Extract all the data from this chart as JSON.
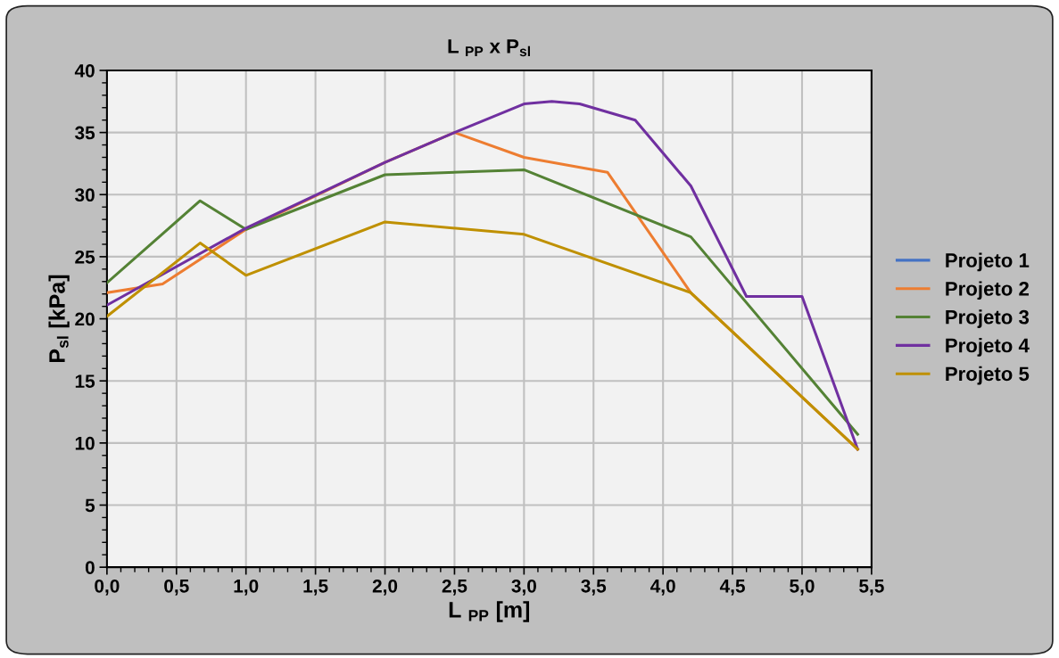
{
  "chart_data": {
    "type": "line",
    "title": "L $_{PP}$ x P$_{sl}$",
    "xlabel": "L $_{PP}$ [m]",
    "ylabel": "P$_{sl}$ [kPa]",
    "series": [
      {
        "name": "Projeto 1",
        "color": "#4472c4",
        "values": [
          null,
          null,
          null,
          null,
          null,
          null,
          null
        ]
      },
      {
        "name": "Projeto 2",
        "color": "#ed7d31",
        "x": [
          0,
          0.4,
          1.0,
          2.0,
          2.5,
          3.0,
          3.6,
          4.2,
          5.4
        ],
        "values": [
          22.1,
          22.8,
          27.2,
          32.6,
          35.0,
          33.0,
          31.8,
          22.1,
          9.5
        ]
      },
      {
        "name": "Projeto 3",
        "color": "#548235",
        "x": [
          0,
          0.67,
          1.0,
          2.0,
          3.0,
          4.2,
          5.4
        ],
        "values": [
          22.9,
          29.5,
          27.2,
          31.6,
          32.0,
          26.6,
          10.7
        ]
      },
      {
        "name": "Projeto 4",
        "color": "#7030a0",
        "x": [
          0,
          1.0,
          2.0,
          2.5,
          3.0,
          3.2,
          3.4,
          3.8,
          4.2,
          4.6,
          5.0,
          5.4
        ],
        "values": [
          21.1,
          27.3,
          32.6,
          35.0,
          37.3,
          37.5,
          37.3,
          36.0,
          30.7,
          21.8,
          21.8,
          9.5
        ]
      },
      {
        "name": "Projeto 5",
        "color": "#bf9000",
        "x": [
          0,
          0.67,
          1.0,
          2.0,
          3.0,
          4.2,
          5.4
        ],
        "values": [
          20.2,
          26.1,
          23.5,
          27.8,
          26.8,
          22.1,
          9.5
        ]
      }
    ],
    "xlim": [
      0,
      5.5
    ],
    "xticks": [
      {
        "value": 0,
        "label": "0,0"
      },
      {
        "value": 0.5,
        "label": "0,5"
      },
      {
        "value": 1.0,
        "label": "1,0"
      },
      {
        "value": 1.5,
        "label": "1,5"
      },
      {
        "value": 2.0,
        "label": "2,0"
      },
      {
        "value": 2.5,
        "label": "2,5"
      },
      {
        "value": 3.0,
        "label": "3,0"
      },
      {
        "value": 3.5,
        "label": "3,5"
      },
      {
        "value": 4.0,
        "label": "4,0"
      },
      {
        "value": 4.5,
        "label": "4,5"
      },
      {
        "value": 5.0,
        "label": "5,0"
      },
      {
        "value": 5.5,
        "label": "5,5"
      }
    ],
    "ylim": [
      0,
      40
    ],
    "yticks": [
      0,
      5,
      10,
      15,
      20,
      25,
      30,
      35,
      40
    ],
    "grid": true,
    "legend": "right",
    "marker": "none",
    "line_style": "solid"
  }
}
